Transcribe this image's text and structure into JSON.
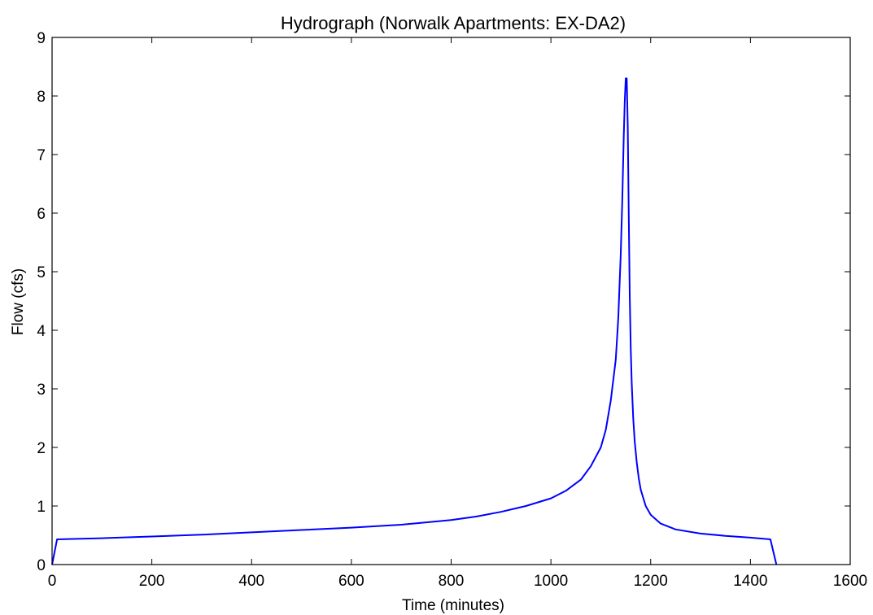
{
  "chart_data": {
    "type": "line",
    "title": "Hydrograph (Norwalk Apartments: EX-DA2)",
    "xlabel": "Time (minutes)",
    "ylabel": "Flow (cfs)",
    "xlim": [
      0,
      1600
    ],
    "ylim": [
      0,
      9
    ],
    "xticks": [
      0,
      200,
      400,
      600,
      800,
      1000,
      1200,
      1400,
      1600
    ],
    "xtick_labels": [
      "0",
      "200",
      "400",
      "600",
      "800",
      "1000",
      "1200",
      "1400",
      "1600"
    ],
    "yticks": [
      0,
      1,
      2,
      3,
      4,
      5,
      6,
      7,
      8,
      9
    ],
    "ytick_labels": [
      "0",
      "1",
      "2",
      "3",
      "4",
      "5",
      "6",
      "7",
      "8",
      "9"
    ],
    "grid": false,
    "line_color": "#0000ff",
    "series": [
      {
        "x": [
          0,
          10,
          100,
          200,
          300,
          400,
          500,
          600,
          700,
          800,
          850,
          900,
          950,
          1000,
          1030,
          1060,
          1080,
          1100,
          1110,
          1120,
          1130,
          1135,
          1140,
          1143,
          1146,
          1148,
          1150,
          1152,
          1154,
          1156,
          1158,
          1160,
          1162,
          1165,
          1168,
          1172,
          1176,
          1180,
          1190,
          1200,
          1220,
          1250,
          1300,
          1350,
          1400,
          1440,
          1452
        ],
        "y": [
          0,
          0.43,
          0.45,
          0.48,
          0.51,
          0.55,
          0.59,
          0.63,
          0.68,
          0.76,
          0.82,
          0.9,
          1.0,
          1.13,
          1.26,
          1.45,
          1.68,
          2.0,
          2.3,
          2.8,
          3.5,
          4.2,
          5.3,
          6.2,
          7.3,
          7.9,
          8.3,
          8.3,
          7.5,
          6.0,
          4.6,
          3.7,
          3.1,
          2.5,
          2.1,
          1.75,
          1.48,
          1.28,
          1.0,
          0.85,
          0.7,
          0.6,
          0.53,
          0.49,
          0.46,
          0.43,
          0
        ]
      }
    ]
  }
}
